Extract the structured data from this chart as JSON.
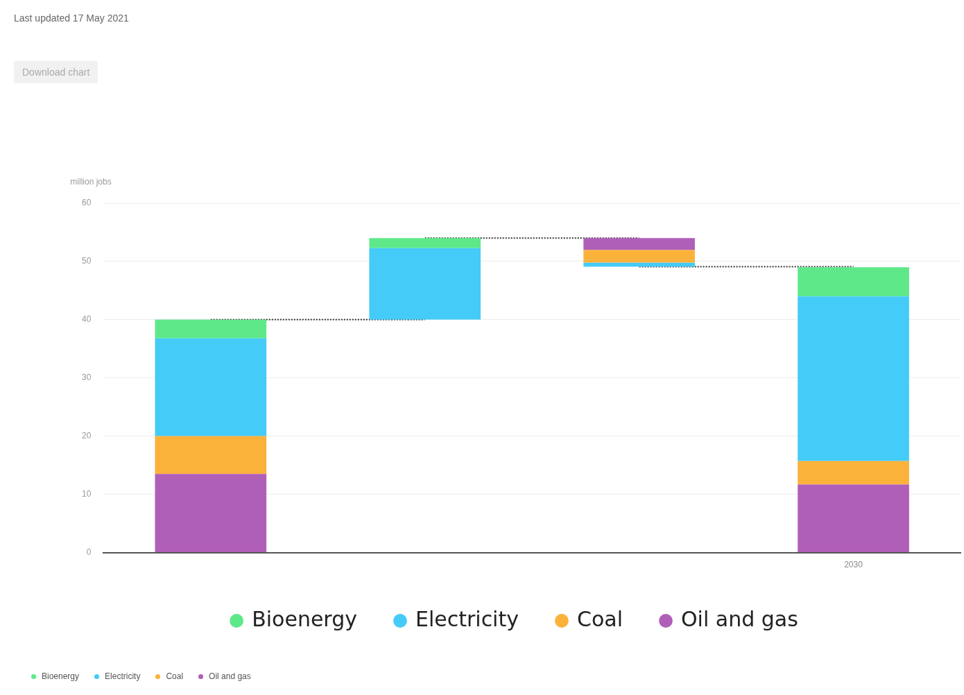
{
  "chart_data": {
    "type": "bar",
    "subtitle": "Last updated 17 May 2021",
    "ylabel": "million jobs",
    "annotations": [
      "Download chart"
    ],
    "categories": [
      null,
      null,
      null,
      "2030"
    ],
    "series": [
      {
        "name": "Oil and gas",
        "color": "#b05fb8",
        "base": [
          0,
          null,
          54,
          0
        ],
        "values": [
          13.5,
          null,
          -2.0,
          11.7
        ]
      },
      {
        "name": "Coal",
        "color": "#fbb23a",
        "base": [
          13.5,
          null,
          52.0,
          11.7
        ],
        "values": [
          6.5,
          null,
          -2.2,
          4.0
        ]
      },
      {
        "name": "Electricity",
        "color": "#45cbf7",
        "base": [
          20.0,
          40,
          49.8,
          15.7
        ],
        "values": [
          16.8,
          12.3,
          -0.7,
          28.3
        ]
      },
      {
        "name": "Bioenergy",
        "color": "#5ee88a",
        "base": [
          36.8,
          52.3,
          null,
          44.0
        ],
        "values": [
          3.2,
          1.7,
          null,
          5.0
        ]
      },
      {
        "type": "line",
        "color": "#333333",
        "line_style": "dotted",
        "marker": "none",
        "values": [
          40.0,
          40.0,
          null,
          null
        ]
      },
      {
        "type": "line",
        "color": "#333333",
        "line_style": "dotted",
        "marker": "none",
        "values": [
          null,
          54.0,
          54.0,
          null
        ]
      },
      {
        "type": "line",
        "color": "#333333",
        "line_style": "dotted",
        "marker": "none",
        "values": [
          null,
          null,
          49.1,
          49.1
        ]
      }
    ],
    "ylim": [
      0,
      60
    ],
    "yticks": [
      0,
      10,
      20,
      30,
      40,
      50,
      60
    ],
    "grid": "y",
    "legend": "bottom"
  }
}
